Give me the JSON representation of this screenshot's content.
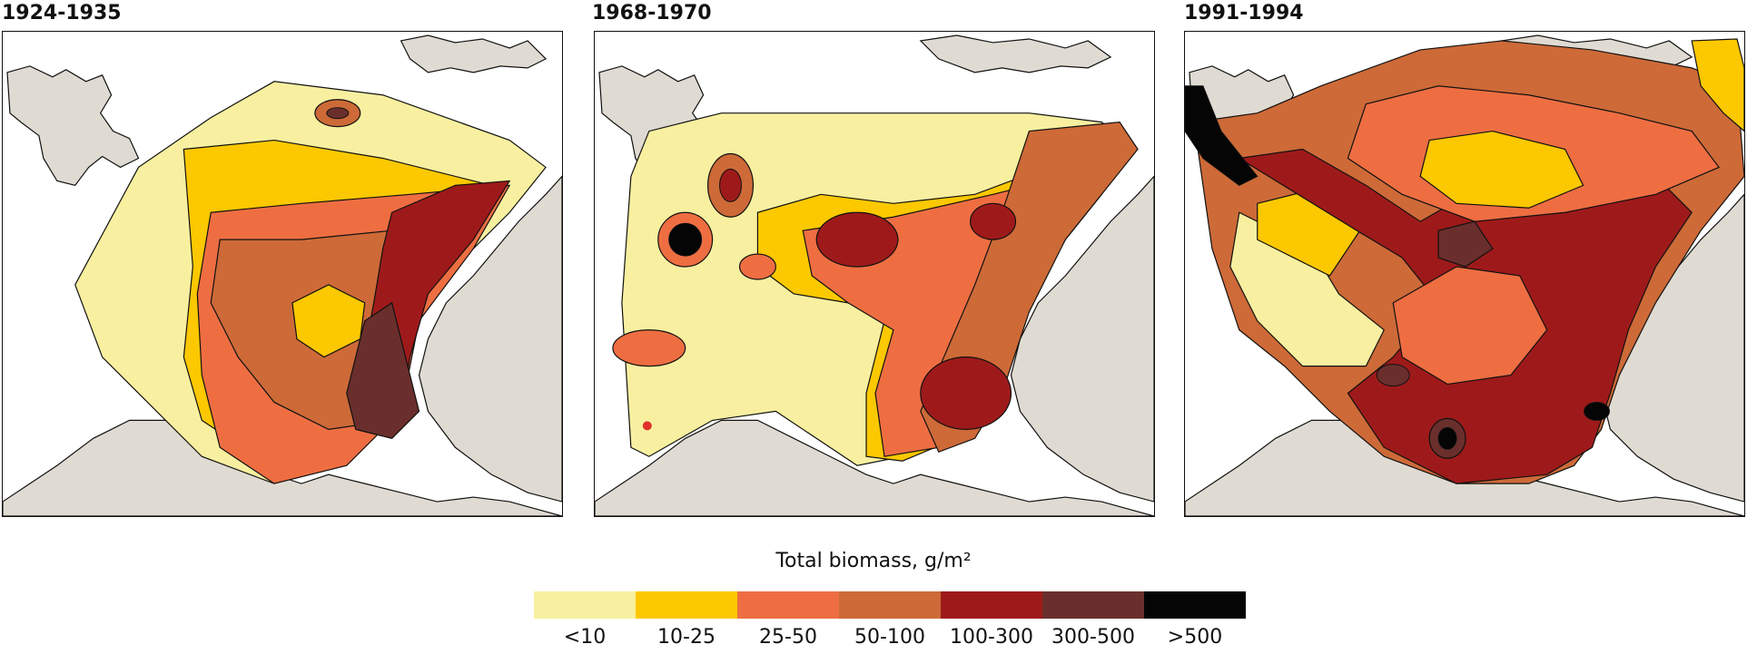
{
  "panels": [
    {
      "title": "1924-1935"
    },
    {
      "title": "1968-1970"
    },
    {
      "title": "1991-1994"
    }
  ],
  "legend": {
    "title": "Total biomass, g/m²",
    "classes": [
      {
        "label": "<10",
        "color": "#f8f0a0"
      },
      {
        "label": "10-25",
        "color": "#fcc800"
      },
      {
        "label": "25-50",
        "color": "#ee6e42"
      },
      {
        "label": "50-100",
        "color": "#cd6a38"
      },
      {
        "label": "100-300",
        "color": "#9e1a1a"
      },
      {
        "label": "300-500",
        "color": "#6a2f2c"
      },
      {
        "label": ">500",
        "color": "#050505"
      }
    ]
  },
  "land_color": "#e0dbd2"
}
